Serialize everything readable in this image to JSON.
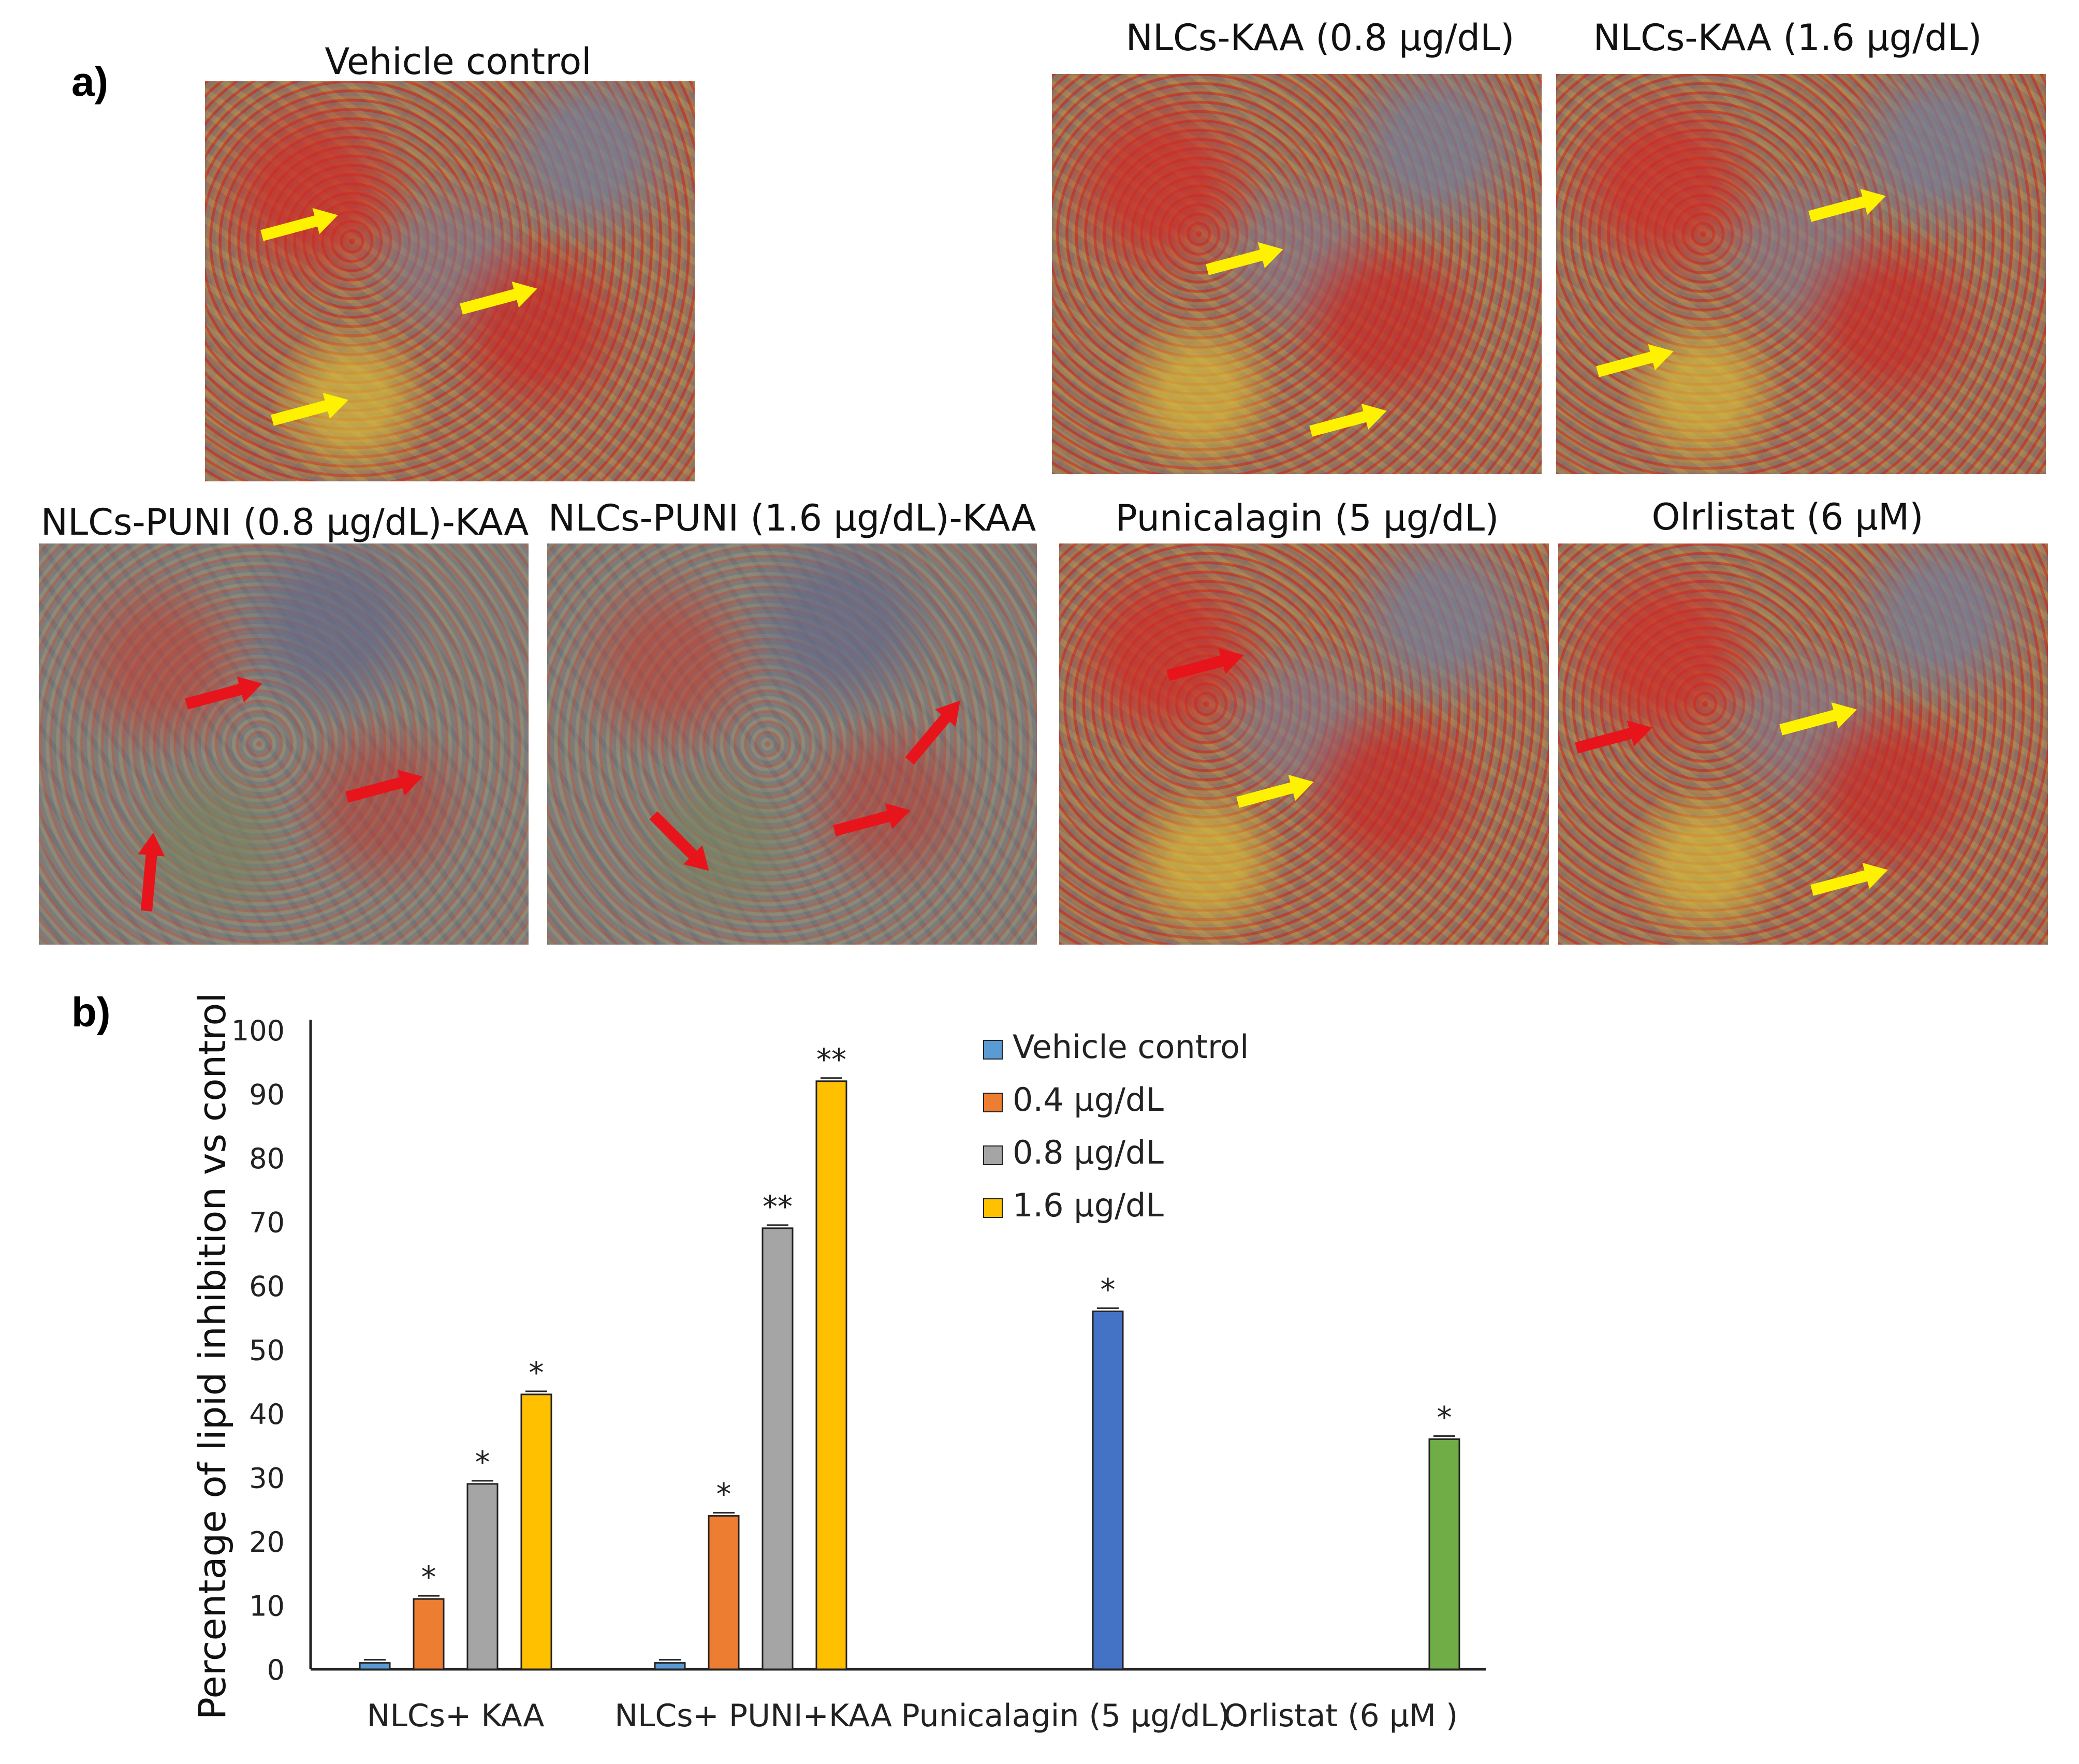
{
  "panel_a": {
    "label": "a)",
    "images": [
      {
        "title": "Vehicle control",
        "arrows": [
          "yellow",
          "yellow",
          "yellow"
        ]
      },
      {
        "title": "NLCs-KAA (0.8 µg/dL)",
        "arrows": [
          "yellow",
          "yellow"
        ]
      },
      {
        "title": "NLCs-KAA (1.6 µg/dL)",
        "arrows": [
          "yellow",
          "yellow"
        ]
      },
      {
        "title": "NLCs-PUNI (0.8 µg/dL)-KAA",
        "arrows": [
          "red",
          "red",
          "red"
        ]
      },
      {
        "title": "NLCs-PUNI (1.6 µg/dL)-KAA",
        "arrows": [
          "red",
          "red",
          "red"
        ]
      },
      {
        "title": "Punicalagin (5 µg/dL)",
        "arrows": [
          "red",
          "yellow"
        ]
      },
      {
        "title": "Olrlistat (6 µM)",
        "arrows": [
          "red",
          "yellow",
          "yellow"
        ]
      }
    ],
    "arrow_colors": {
      "yellow": "#fff200",
      "red": "#e8141b"
    }
  },
  "panel_b": {
    "label": "b)"
  },
  "chart_data": {
    "type": "bar",
    "title": "",
    "xlabel": "",
    "ylabel": "Percentage of lipid inhibition vs control",
    "ylim": [
      0,
      100
    ],
    "yticks": [
      0,
      10,
      20,
      30,
      40,
      50,
      60,
      70,
      80,
      90,
      100
    ],
    "grid": false,
    "legend_position": "top-center",
    "categories": [
      "NLCs+ KAA",
      "NLCs+ PUNI+KAA",
      "Punicalagin (5 µg/dL)",
      "Orlistat  (6 µM )"
    ],
    "series": [
      {
        "name": "Vehicle control",
        "color": "#5b9bd5",
        "values": [
          1,
          1,
          null,
          null
        ],
        "significance": [
          "",
          "",
          "",
          ""
        ]
      },
      {
        "name": "0.4 µg/dL",
        "color": "#ed7d31",
        "values": [
          11,
          24,
          null,
          null
        ],
        "significance": [
          "*",
          "*",
          "",
          ""
        ]
      },
      {
        "name": "0.8 µg/dL",
        "color": "#a5a5a5",
        "values": [
          29,
          69,
          null,
          null
        ],
        "significance": [
          "*",
          "**",
          "",
          ""
        ]
      },
      {
        "name": "1.6 µg/dL",
        "color": "#ffc000",
        "values": [
          43,
          92,
          null,
          null
        ],
        "significance": [
          "*",
          "**",
          "",
          ""
        ]
      }
    ],
    "single_bars": [
      {
        "category": "Punicalagin (5 µg/dL)",
        "value": 56,
        "color": "#4472c4",
        "significance": "*"
      },
      {
        "category": "Orlistat  (6 µM )",
        "value": 36,
        "color": "#70ad47",
        "significance": "*"
      }
    ]
  }
}
